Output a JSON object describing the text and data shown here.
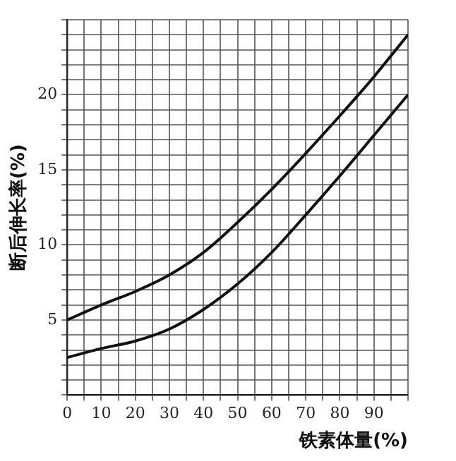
{
  "chart_data": {
    "type": "line",
    "xlabel": "铁素体量(%)",
    "ylabel": "断后伸长率(%)",
    "x": [
      0,
      10,
      20,
      30,
      40,
      50,
      60,
      70,
      80,
      90,
      100
    ],
    "series": [
      {
        "color": "#111111",
        "values": [
          5.0,
          6.0,
          6.9,
          8.0,
          9.5,
          11.5,
          13.7,
          16.1,
          18.6,
          21.2,
          24.0
        ]
      },
      {
        "color": "#111111",
        "values": [
          2.5,
          3.1,
          3.6,
          4.4,
          5.7,
          7.4,
          9.5,
          12.0,
          14.6,
          17.3,
          20.0
        ]
      }
    ],
    "xlim": [
      0,
      100
    ],
    "xticks": [
      0,
      {
        "value": 5,
        "label": null
      },
      10,
      {
        "value": 15,
        "label": null
      },
      20,
      {
        "value": 25,
        "label": null
      },
      30,
      {
        "value": 35,
        "label": null
      },
      40,
      {
        "value": 45,
        "label": null
      },
      50,
      {
        "value": 55,
        "label": null
      },
      60,
      {
        "value": 65,
        "label": null
      },
      70,
      {
        "value": 75,
        "label": null
      },
      80,
      {
        "value": 85,
        "label": null
      },
      90,
      {
        "value": 95,
        "label": null
      },
      {
        "value": 100,
        "label": null
      }
    ],
    "ylim": [
      0,
      25
    ],
    "yticks": [
      {
        "value": 0,
        "label": null
      },
      {
        "value": 1,
        "label": null
      },
      {
        "value": 2,
        "label": null
      },
      {
        "value": 3,
        "label": null
      },
      {
        "value": 4,
        "label": null
      },
      5,
      {
        "value": 6,
        "label": null
      },
      {
        "value": 7,
        "label": null
      },
      {
        "value": 8,
        "label": null
      },
      {
        "value": 9,
        "label": null
      },
      10,
      {
        "value": 11,
        "label": null
      },
      {
        "value": 12,
        "label": null
      },
      {
        "value": 13,
        "label": null
      },
      {
        "value": 14,
        "label": null
      },
      15,
      {
        "value": 16,
        "label": null
      },
      {
        "value": 17,
        "label": null
      },
      {
        "value": 18,
        "label": null
      },
      {
        "value": 19,
        "label": null
      },
      20,
      {
        "value": 21,
        "label": null
      },
      {
        "value": 22,
        "label": null
      },
      {
        "value": 23,
        "label": null
      },
      {
        "value": 24,
        "label": null
      },
      {
        "value": 25,
        "label": null
      }
    ],
    "grid": true,
    "legend": false,
    "marker": "none",
    "line_style": "solid"
  }
}
